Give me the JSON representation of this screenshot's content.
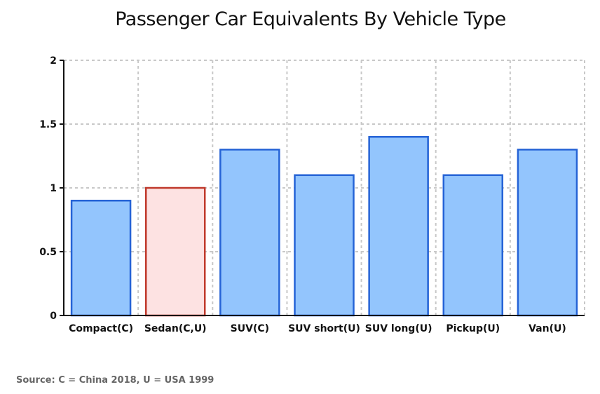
{
  "chart_data": {
    "type": "bar",
    "title": "Passenger Car Equivalents By Vehicle Type",
    "categories": [
      "Compact(C)",
      "Sedan(C,U)",
      "SUV(C)",
      "SUV short(U)",
      "SUV long(U)",
      "Pickup(U)",
      "Van(U)"
    ],
    "values": [
      0.9,
      1.0,
      1.3,
      1.1,
      1.4,
      1.1,
      1.3
    ],
    "highlight_index": 1,
    "ylim": [
      0,
      2
    ],
    "yticks": [
      0,
      0.5,
      1,
      1.5,
      2
    ],
    "ytick_labels": [
      "0",
      "0.5",
      "1",
      "1.5",
      "2"
    ],
    "grid": true,
    "xlabel": "",
    "ylabel": "",
    "colors": {
      "bar_fill": "#93c5fd",
      "bar_stroke": "#2563d6",
      "highlight_fill": "#fde2e2",
      "highlight_stroke": "#c0392b",
      "grid": "#c8c8c8",
      "axis": "#111111"
    }
  },
  "source_note": "Source: C = China 2018, U = USA 1999"
}
